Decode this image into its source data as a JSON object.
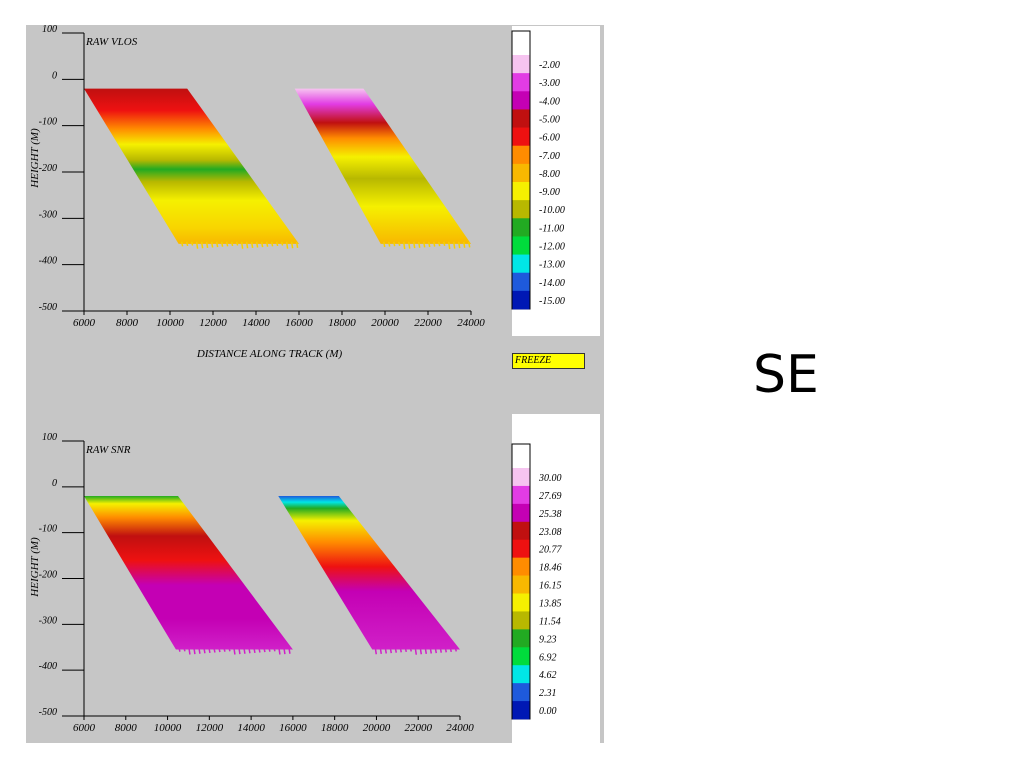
{
  "corner_label": "SE",
  "freeze_label": "FREEZE",
  "chart_data": [
    {
      "type": "heatmap",
      "title": "RAW VLOS",
      "xlabel": "DISTANCE ALONG TRACK (M)",
      "ylabel": "HEIGHT (M)",
      "xlim": [
        6000,
        24000
      ],
      "ylim": [
        -500,
        100
      ],
      "x_ticks": [
        6000,
        8000,
        10000,
        12000,
        14000,
        16000,
        18000,
        20000,
        22000,
        24000
      ],
      "y_ticks": [
        100,
        0,
        -100,
        -200,
        -300,
        -400,
        -500
      ],
      "y_tick_labels": [
        "100",
        "0",
        "-100",
        "-200",
        "-300",
        "-400",
        "-500"
      ],
      "swaths": [
        {
          "top_x": [
            6000,
            10800
          ],
          "bottom_x": [
            10400,
            16000
          ],
          "top_y": -20,
          "bottom_y": -355
        },
        {
          "top_x": [
            15800,
            19000
          ],
          "bottom_x": [
            19800,
            24000
          ],
          "top_y": -20,
          "bottom_y": -355
        }
      ],
      "color_scale": {
        "labels": [
          "-2.00",
          "-3.00",
          "-4.00",
          "-5.00",
          "-6.00",
          "-7.00",
          "-8.00",
          "-9.00",
          "-10.00",
          "-11.00",
          "-12.00",
          "-13.00",
          "-14.00",
          "-15.00"
        ],
        "colors": [
          "#f6c4f0",
          "#e23ce4",
          "#c400b4",
          "#c01010",
          "#ee1111",
          "#ff8c00",
          "#f8b800",
          "#f5f000",
          "#b8b800",
          "#22aa22",
          "#00dc3c",
          "#00e6e6",
          "#1e5adc",
          "#0018b4"
        ]
      }
    },
    {
      "type": "heatmap",
      "title": "RAW SNR",
      "xlabel": "",
      "ylabel": "HEIGHT (M)",
      "xlim": [
        6000,
        24000
      ],
      "ylim": [
        -500,
        100
      ],
      "x_ticks": [
        6000,
        8000,
        10000,
        12000,
        14000,
        16000,
        18000,
        20000,
        22000,
        24000
      ],
      "y_ticks": [
        100,
        0,
        -100,
        -200,
        -300,
        -400,
        -500
      ],
      "y_tick_labels": [
        "100",
        "0",
        "-100",
        "-200",
        "-300",
        "-400",
        "-500"
      ],
      "swaths": [
        {
          "top_x": [
            6000,
            10500
          ],
          "bottom_x": [
            10400,
            16000
          ],
          "top_y": -20,
          "bottom_y": -355
        },
        {
          "top_x": [
            15300,
            18200
          ],
          "bottom_x": [
            19800,
            24000
          ],
          "top_y": -20,
          "bottom_y": -355
        }
      ],
      "color_scale": {
        "labels": [
          "30.00",
          "27.69",
          "25.38",
          "23.08",
          "20.77",
          "18.46",
          "16.15",
          "13.85",
          "11.54",
          "9.23",
          "6.92",
          "4.62",
          "2.31",
          "0.00"
        ],
        "colors": [
          "#f6c4f0",
          "#e23ce4",
          "#c400b4",
          "#c01010",
          "#ee1111",
          "#ff8c00",
          "#f8b800",
          "#f5f000",
          "#b8b800",
          "#22aa22",
          "#00dc3c",
          "#00e6e6",
          "#1e5adc",
          "#0018b4"
        ]
      }
    }
  ]
}
